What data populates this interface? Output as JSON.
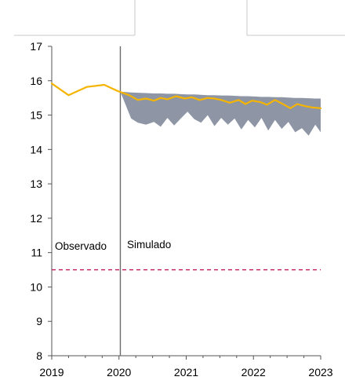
{
  "chart_data": {
    "type": "line",
    "title": "",
    "xlabel": "",
    "ylabel": "",
    "xlim": [
      2019,
      2023
    ],
    "ylim": [
      8,
      17
    ],
    "x_ticks": [
      "2019",
      "2020",
      "2021",
      "2022",
      "2023"
    ],
    "y_ticks": [
      "8",
      "9",
      "10",
      "11",
      "12",
      "13",
      "14",
      "15",
      "16",
      "17"
    ],
    "divider_x": 2020.02,
    "annotations": {
      "observed": "Observado",
      "simulated": "Simulado"
    },
    "reference_line": {
      "y": 10.5,
      "color": "#c2185b",
      "style": "dashed"
    },
    "colors": {
      "line": "#f5b400",
      "band": "#8e96a6",
      "axis": "#555555"
    },
    "series": [
      {
        "kind": "line",
        "x": [
          2019.0,
          2019.25,
          2019.52,
          2019.78,
          2019.98,
          2020.15,
          2020.28,
          2020.4,
          2020.52,
          2020.62,
          2020.72,
          2020.85,
          2020.98,
          2021.08,
          2021.2,
          2021.32,
          2021.42,
          2021.52,
          2021.65,
          2021.78,
          2021.88,
          2021.98,
          2022.1,
          2022.2,
          2022.32,
          2022.42,
          2022.55,
          2022.65,
          2022.77,
          2022.88,
          2023.0
        ],
        "y": [
          15.92,
          15.58,
          15.82,
          15.88,
          15.7,
          15.58,
          15.44,
          15.48,
          15.42,
          15.5,
          15.46,
          15.55,
          15.48,
          15.52,
          15.44,
          15.5,
          15.48,
          15.44,
          15.36,
          15.44,
          15.32,
          15.42,
          15.38,
          15.3,
          15.44,
          15.34,
          15.2,
          15.32,
          15.26,
          15.22,
          15.2
        ]
      },
      {
        "kind": "band",
        "x": [
          2020.02,
          2020.18,
          2020.28,
          2020.4,
          2020.52,
          2020.62,
          2020.72,
          2020.82,
          2020.92,
          2021.02,
          2021.12,
          2021.22,
          2021.32,
          2021.42,
          2021.52,
          2021.62,
          2021.72,
          2021.82,
          2021.92,
          2022.02,
          2022.12,
          2022.22,
          2022.32,
          2022.42,
          2022.52,
          2022.62,
          2022.72,
          2022.82,
          2022.92,
          2023.0
        ],
        "upper": [
          15.68,
          15.66,
          15.65,
          15.64,
          15.63,
          15.63,
          15.62,
          15.62,
          15.61,
          15.6,
          15.6,
          15.59,
          15.58,
          15.58,
          15.57,
          15.57,
          15.56,
          15.55,
          15.55,
          15.54,
          15.53,
          15.53,
          15.52,
          15.52,
          15.51,
          15.5,
          15.5,
          15.49,
          15.48,
          15.48
        ],
        "lower": [
          15.68,
          14.9,
          14.78,
          14.72,
          14.8,
          14.66,
          14.92,
          14.7,
          14.9,
          15.1,
          14.88,
          14.78,
          15.0,
          14.68,
          14.92,
          14.72,
          14.9,
          14.58,
          14.86,
          14.64,
          14.92,
          14.55,
          14.86,
          14.6,
          14.8,
          14.5,
          14.62,
          14.4,
          14.72,
          14.5
        ]
      }
    ]
  }
}
